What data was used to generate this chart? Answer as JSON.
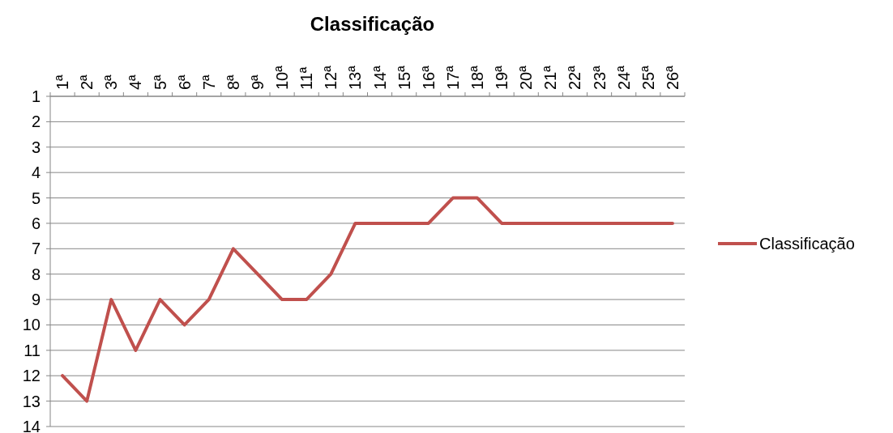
{
  "chart_data": {
    "type": "line",
    "title": "Classificação",
    "categories": [
      "1ª",
      "2ª",
      "3ª",
      "4ª",
      "5ª",
      "6ª",
      "7ª",
      "8ª",
      "9ª",
      "10ª",
      "11ª",
      "12ª",
      "13ª",
      "14ª",
      "15ª",
      "16ª",
      "17ª",
      "18ª",
      "19ª",
      "20ª",
      "21ª",
      "22ª",
      "23ª",
      "24ª",
      "25ª",
      "26ª"
    ],
    "series": [
      {
        "name": "Classificação",
        "color": "#c0504d",
        "values": [
          12,
          13,
          9,
          11,
          9,
          10,
          9,
          7,
          8,
          9,
          9,
          8,
          6,
          6,
          6,
          6,
          5,
          5,
          6,
          6,
          6,
          6,
          6,
          6,
          6,
          6
        ]
      }
    ],
    "ylim": [
      14,
      1
    ],
    "yticks": [
      1,
      2,
      3,
      4,
      5,
      6,
      7,
      8,
      9,
      10,
      11,
      12,
      13,
      14
    ],
    "grid": "y",
    "legend": "right",
    "marker": "none",
    "line_style": "solid"
  }
}
